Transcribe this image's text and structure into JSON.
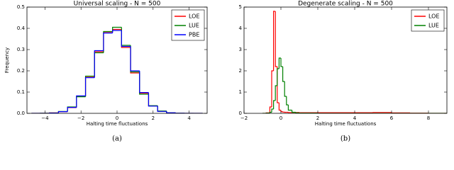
{
  "chart_data": [
    {
      "type": "histogram",
      "title": "Universal scaling - N = 500",
      "xlabel": "Halting time fluctuations",
      "ylabel": "Frequency",
      "caption": "(a)",
      "bins": [
        -4.75,
        -4.25,
        -3.75,
        -3.25,
        -2.75,
        -2.25,
        -1.75,
        -1.25,
        -0.75,
        -0.25,
        0.25,
        0.75,
        1.25,
        1.75,
        2.25,
        2.75,
        3.25,
        3.75,
        4.25,
        4.75
      ],
      "series": [
        {
          "name": "LOE",
          "color": "#ff0000",
          "values": [
            0,
            0.0003,
            0.002,
            0.008,
            0.027,
            0.08,
            0.17,
            0.29,
            0.38,
            0.395,
            0.31,
            0.19,
            0.095,
            0.035,
            0.01,
            0.002,
            0.0005,
            0,
            0
          ]
        },
        {
          "name": "LUE",
          "color": "#008000",
          "values": [
            0,
            0.0003,
            0.0017,
            0.009,
            0.03,
            0.078,
            0.175,
            0.285,
            0.385,
            0.405,
            0.32,
            0.195,
            0.09,
            0.036,
            0.011,
            0.002,
            0.0004,
            0,
            0
          ]
        },
        {
          "name": "PBE",
          "color": "#0000ff",
          "values": [
            0,
            0.0002,
            0.0015,
            0.008,
            0.028,
            0.082,
            0.168,
            0.295,
            0.378,
            0.39,
            0.315,
            0.2,
            0.098,
            0.034,
            0.009,
            0.0025,
            0.0005,
            0,
            0
          ]
        }
      ],
      "xlim": [
        -5,
        5
      ],
      "xticks": [
        {
          "value": -4,
          "label": "−4"
        },
        {
          "value": -2,
          "label": "−2"
        },
        0,
        2,
        4
      ],
      "ylim": [
        0,
        0.5
      ],
      "yticks": [
        {
          "value": 0,
          "label": "0.0"
        },
        0.1,
        0.2,
        0.3,
        0.4,
        0.5
      ],
      "legend": "upper right"
    },
    {
      "type": "histogram",
      "title": "Degenerate scaling - N = 500",
      "xlabel": "Halting time fluctuations",
      "caption": "(b)",
      "bins": [
        -1,
        -0.8,
        -0.6,
        -0.5,
        -0.4,
        -0.3,
        -0.2,
        -0.1,
        0,
        0.1,
        0.2,
        0.3,
        0.4,
        0.6,
        0.8,
        1,
        2,
        3,
        4,
        5,
        6,
        7,
        8,
        9
      ],
      "series": [
        {
          "name": "LOE",
          "color": "#ff0000",
          "values": [
            0,
            0.02,
            0.3,
            2.0,
            4.8,
            2.2,
            0.5,
            0.15,
            0.08,
            0.06,
            0.05,
            0.05,
            0.04,
            0.04,
            0.04,
            0.03,
            0.03,
            0.03,
            0.03,
            0.04,
            0.02,
            0.01,
            0
          ]
        },
        {
          "name": "LUE",
          "color": "#008000",
          "values": [
            0,
            0.01,
            0.05,
            0.2,
            0.6,
            1.3,
            2.1,
            2.6,
            2.2,
            1.5,
            0.8,
            0.4,
            0.15,
            0.05,
            0.02,
            0.01,
            0,
            0,
            0,
            0,
            0,
            0,
            0
          ]
        }
      ],
      "xlim": [
        -2,
        9
      ],
      "xticks": [
        {
          "value": -2,
          "label": "−2"
        },
        0,
        2,
        4,
        6,
        8
      ],
      "ylim": [
        0,
        5
      ],
      "yticks": [
        0,
        1,
        2,
        3,
        4,
        5
      ],
      "legend": "upper right"
    }
  ]
}
